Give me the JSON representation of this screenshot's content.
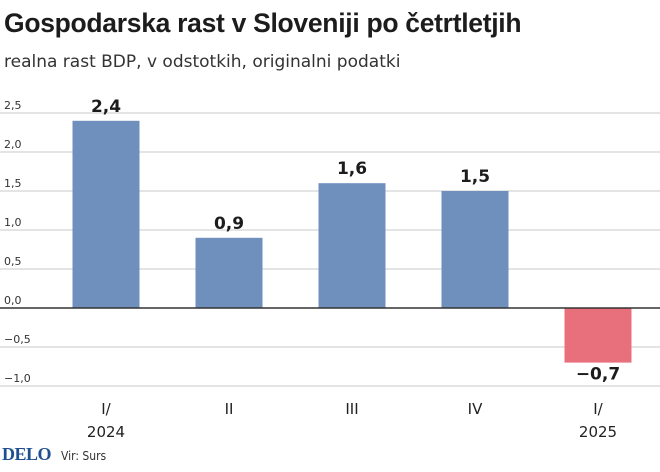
{
  "header": {
    "title": "Gospodarska rast v Sloveniji po četrtletjih",
    "subtitle": "realna rast BDP, v odstotkih, originalni podatki"
  },
  "footer": {
    "logo": "DELO",
    "source": "Vir: Surs"
  },
  "colors": {
    "positive_bar": "#6f8fbd",
    "negative_bar": "#e8707c",
    "grid": "#c9c9c9",
    "zero_line": "#333333"
  },
  "chart_data": {
    "type": "bar",
    "title": "Gospodarska rast v Sloveniji po četrtletjih",
    "subtitle": "realna rast BDP, v odstotkih, originalni podatki",
    "categories": [
      {
        "quarter": "I/",
        "year": "2024"
      },
      {
        "quarter": "II",
        "year": ""
      },
      {
        "quarter": "III",
        "year": ""
      },
      {
        "quarter": "IV",
        "year": ""
      },
      {
        "quarter": "I/",
        "year": "2025"
      }
    ],
    "values": [
      2.4,
      0.9,
      1.6,
      1.5,
      -0.7
    ],
    "value_labels": [
      "2,4",
      "0,9",
      "1,6",
      "1,5",
      "−0,7"
    ],
    "ylim": [
      -1.0,
      2.5
    ],
    "yticks": [
      2.5,
      2.0,
      1.5,
      1.0,
      0.5,
      0.0,
      -0.5,
      -1.0
    ],
    "ytick_labels": [
      "2,5",
      "2,0",
      "1,5",
      "1,0",
      "0,5",
      "0,0",
      "−0,5",
      "−1,0"
    ],
    "grid": true,
    "legend": "none"
  }
}
